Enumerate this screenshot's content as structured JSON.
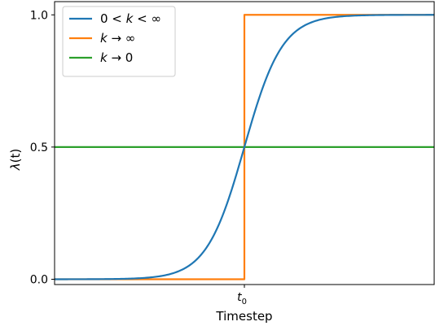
{
  "chart_data": {
    "type": "line",
    "xlabel": "Timestep",
    "ylabel_symbol": "λ",
    "ylabel_arg": "(t)",
    "xlim": [
      -1.0,
      1.0
    ],
    "ylim": [
      -0.02,
      1.05
    ],
    "x_ticks": [
      {
        "value": 0,
        "label_main": "t",
        "label_sub": "0"
      }
    ],
    "y_ticks": [
      {
        "value": 0.0,
        "label": "0.0"
      },
      {
        "value": 0.5,
        "label": "0.5"
      },
      {
        "value": 1.0,
        "label": "1.0"
      }
    ],
    "t0": 0,
    "grid": false,
    "legend": "top-left",
    "series": [
      {
        "name": "0 < k < ∞",
        "legend_parts": [
          "0 < ",
          "k",
          " < ∞"
        ],
        "color": "#1f77b4",
        "kind": "sigmoid",
        "k": 10,
        "x": [
          -1.0,
          -0.8,
          -0.6,
          -0.4,
          -0.3,
          -0.2,
          -0.1,
          0.0,
          0.1,
          0.2,
          0.3,
          0.4,
          0.6,
          0.8,
          1.0
        ],
        "y": [
          0.0,
          0.0003,
          0.0025,
          0.018,
          0.047,
          0.119,
          0.269,
          0.5,
          0.731,
          0.881,
          0.953,
          0.982,
          0.9975,
          0.9997,
          1.0
        ]
      },
      {
        "name": "k → ∞",
        "legend_parts": [
          "",
          "k",
          " → ∞"
        ],
        "color": "#ff7f0e",
        "kind": "step",
        "x": [
          -1.0,
          0.0,
          0.0,
          1.0
        ],
        "y": [
          0.0,
          0.0,
          1.0,
          1.0
        ]
      },
      {
        "name": "k → 0",
        "legend_parts": [
          "",
          "k",
          " → 0"
        ],
        "color": "#2ca02c",
        "kind": "constant",
        "x": [
          -1.0,
          1.0
        ],
        "y": [
          0.5,
          0.5
        ]
      }
    ]
  }
}
